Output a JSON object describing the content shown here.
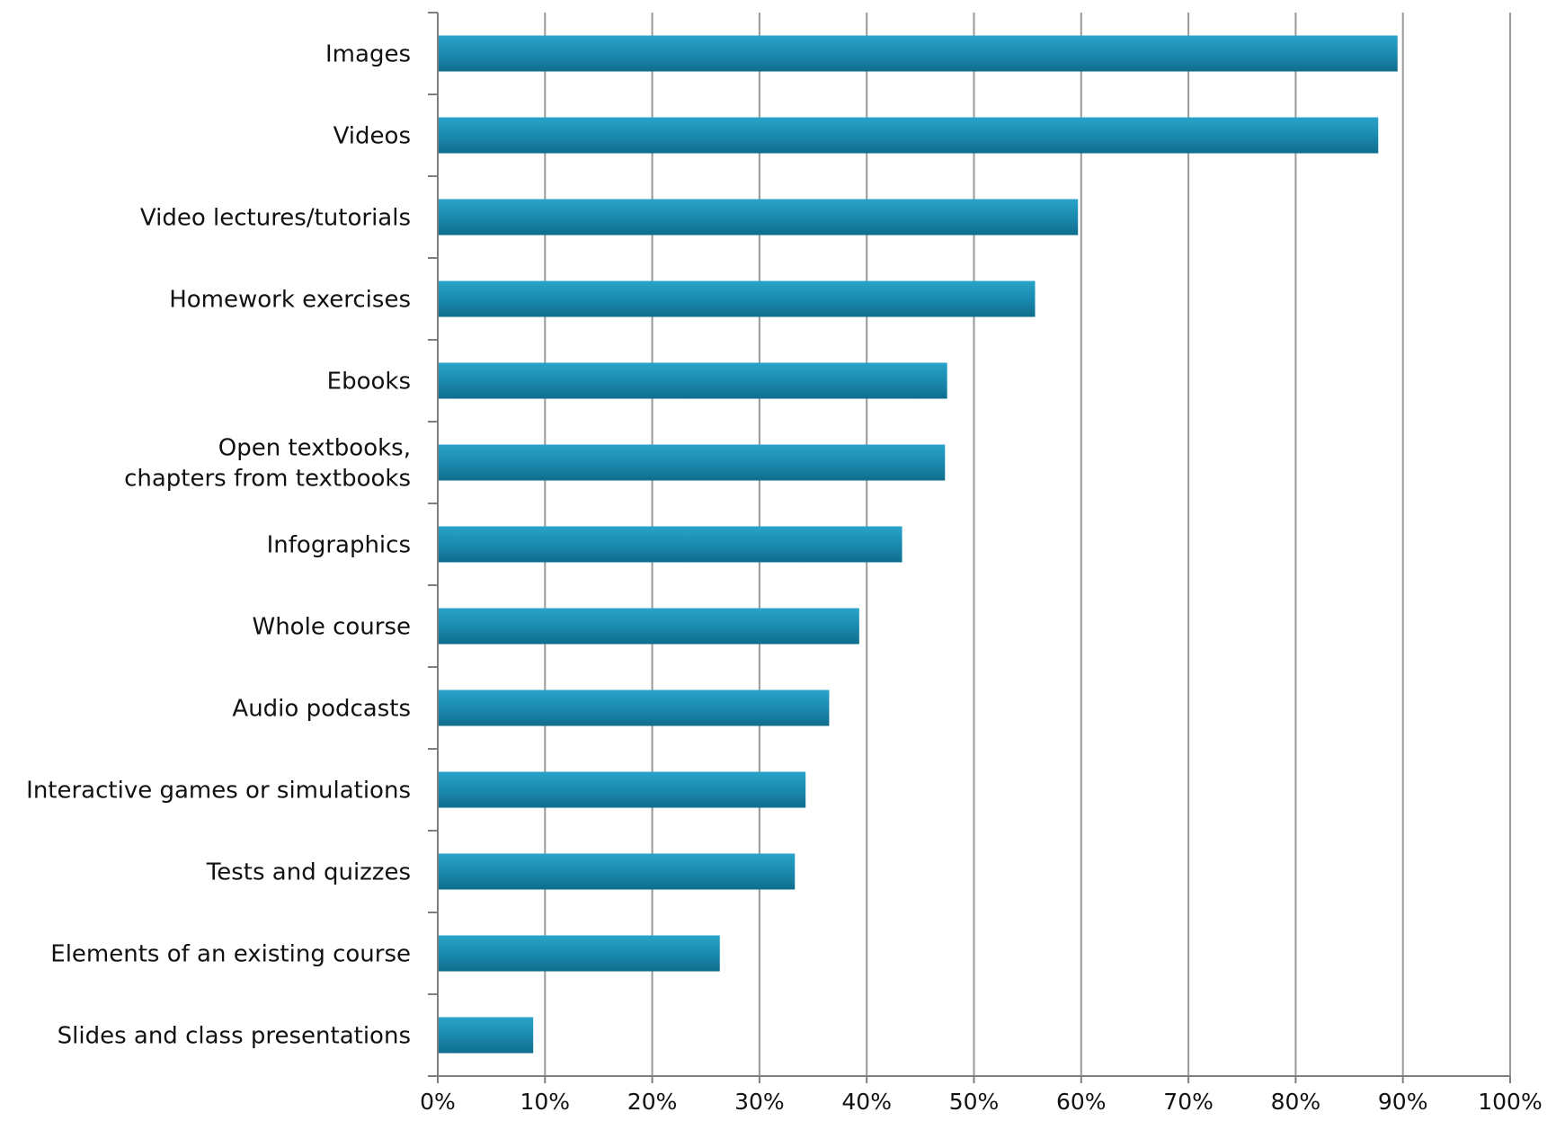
{
  "chart_data": {
    "type": "bar",
    "orientation": "horizontal",
    "categories": [
      [
        "Images"
      ],
      [
        "Videos"
      ],
      [
        "Video lectures/tutorials"
      ],
      [
        "Homework exercises"
      ],
      [
        "Ebooks"
      ],
      [
        "Open textbooks,",
        "chapters from textbooks"
      ],
      [
        "Infographics"
      ],
      [
        "Whole course"
      ],
      [
        "Audio podcasts"
      ],
      [
        "Interactive games or simulations"
      ],
      [
        "Tests and quizzes"
      ],
      [
        "Elements of an existing course"
      ],
      [
        "Slides and class presentations"
      ]
    ],
    "values": [
      89.5,
      87.7,
      59.7,
      55.7,
      47.5,
      47.3,
      43.3,
      39.3,
      36.5,
      34.3,
      33.3,
      26.3,
      8.9
    ],
    "x_ticks": [
      "0%",
      "10%",
      "20%",
      "30%",
      "40%",
      "50%",
      "60%",
      "70%",
      "80%",
      "90%",
      "100%"
    ],
    "xlim": [
      0,
      100
    ],
    "grid": true,
    "bar_color": "#1a88ad",
    "title": "",
    "xlabel": "",
    "ylabel": ""
  }
}
